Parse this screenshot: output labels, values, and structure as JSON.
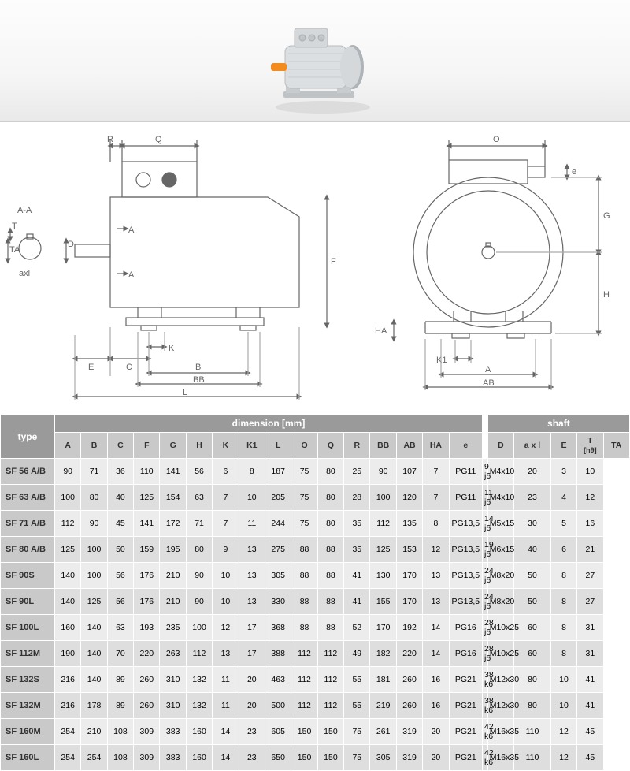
{
  "background_color": "#ffffff",
  "diagram": {
    "labels": [
      "R",
      "Q",
      "A-A",
      "T",
      "TA",
      "axl",
      "D",
      "A",
      "A",
      "E",
      "C",
      "K",
      "B",
      "BB",
      "L",
      "F",
      "HA",
      "K1",
      "A",
      "AB",
      "O",
      "e",
      "G",
      "H"
    ],
    "stroke": "#666666",
    "fill": "#ffffff"
  },
  "table": {
    "header1": {
      "type": "type",
      "dim": "dimension [mm]",
      "shaft": "shaft"
    },
    "columns_dim": [
      "A",
      "B",
      "C",
      "F",
      "G",
      "H",
      "K",
      "K1",
      "L",
      "O",
      "Q",
      "R",
      "BB",
      "AB",
      "HA",
      "e"
    ],
    "columns_shaft": [
      "D",
      "a x l",
      "E",
      "T\n[h9]",
      "TA"
    ],
    "rows": [
      {
        "type": "SF 56 A/B",
        "dim": [
          "90",
          "71",
          "36",
          "110",
          "141",
          "56",
          "6",
          "8",
          "187",
          "75",
          "80",
          "25",
          "90",
          "107",
          "7",
          "PG11"
        ],
        "sh": [
          "9 j6",
          "M4x10",
          "20",
          "3",
          "10"
        ]
      },
      {
        "type": "SF 63 A/B",
        "dim": [
          "100",
          "80",
          "40",
          "125",
          "154",
          "63",
          "7",
          "10",
          "205",
          "75",
          "80",
          "28",
          "100",
          "120",
          "7",
          "PG11"
        ],
        "sh": [
          "11 j6",
          "M4x10",
          "23",
          "4",
          "12"
        ]
      },
      {
        "type": "SF 71 A/B",
        "dim": [
          "112",
          "90",
          "45",
          "141",
          "172",
          "71",
          "7",
          "11",
          "244",
          "75",
          "80",
          "35",
          "112",
          "135",
          "8",
          "PG13,5"
        ],
        "sh": [
          "14 j6",
          "M5x15",
          "30",
          "5",
          "16"
        ]
      },
      {
        "type": "SF 80 A/B",
        "dim": [
          "125",
          "100",
          "50",
          "159",
          "195",
          "80",
          "9",
          "13",
          "275",
          "88",
          "88",
          "35",
          "125",
          "153",
          "12",
          "PG13,5"
        ],
        "sh": [
          "19 j6",
          "M6x15",
          "40",
          "6",
          "21"
        ]
      },
      {
        "type": "SF 90S",
        "dim": [
          "140",
          "100",
          "56",
          "176",
          "210",
          "90",
          "10",
          "13",
          "305",
          "88",
          "88",
          "41",
          "130",
          "170",
          "13",
          "PG13,5"
        ],
        "sh": [
          "24 j6",
          "M8x20",
          "50",
          "8",
          "27"
        ]
      },
      {
        "type": "SF 90L",
        "dim": [
          "140",
          "125",
          "56",
          "176",
          "210",
          "90",
          "10",
          "13",
          "330",
          "88",
          "88",
          "41",
          "155",
          "170",
          "13",
          "PG13,5"
        ],
        "sh": [
          "24 j6",
          "M8x20",
          "50",
          "8",
          "27"
        ]
      },
      {
        "type": "SF 100L",
        "dim": [
          "160",
          "140",
          "63",
          "193",
          "235",
          "100",
          "12",
          "17",
          "368",
          "88",
          "88",
          "52",
          "170",
          "192",
          "14",
          "PG16"
        ],
        "sh": [
          "28 j6",
          "M10x25",
          "60",
          "8",
          "31"
        ]
      },
      {
        "type": "SF 112M",
        "dim": [
          "190",
          "140",
          "70",
          "220",
          "263",
          "112",
          "13",
          "17",
          "388",
          "112",
          "112",
          "49",
          "182",
          "220",
          "14",
          "PG16"
        ],
        "sh": [
          "28 j6",
          "M10x25",
          "60",
          "8",
          "31"
        ]
      },
      {
        "type": "SF 132S",
        "dim": [
          "216",
          "140",
          "89",
          "260",
          "310",
          "132",
          "11",
          "20",
          "463",
          "112",
          "112",
          "55",
          "181",
          "260",
          "16",
          "PG21"
        ],
        "sh": [
          "38 k6",
          "M12x30",
          "80",
          "10",
          "41"
        ]
      },
      {
        "type": "SF 132M",
        "dim": [
          "216",
          "178",
          "89",
          "260",
          "310",
          "132",
          "11",
          "20",
          "500",
          "112",
          "112",
          "55",
          "219",
          "260",
          "16",
          "PG21"
        ],
        "sh": [
          "38 k6",
          "M12x30",
          "80",
          "10",
          "41"
        ]
      },
      {
        "type": "SF 160M",
        "dim": [
          "254",
          "210",
          "108",
          "309",
          "383",
          "160",
          "14",
          "23",
          "605",
          "150",
          "150",
          "75",
          "261",
          "319",
          "20",
          "PG21"
        ],
        "sh": [
          "42 k6",
          "M16x35",
          "110",
          "12",
          "45"
        ]
      },
      {
        "type": "SF 160L",
        "dim": [
          "254",
          "254",
          "108",
          "309",
          "383",
          "160",
          "14",
          "23",
          "650",
          "150",
          "150",
          "75",
          "305",
          "319",
          "20",
          "PG21"
        ],
        "sh": [
          "42 k6",
          "M16x35",
          "110",
          "12",
          "45"
        ]
      }
    ],
    "header_bg1": "#9a9a9a",
    "header_bg2": "#c9c9c9",
    "row_odd": "#ececec",
    "row_even": "#dedede",
    "font_size": 10.5
  }
}
